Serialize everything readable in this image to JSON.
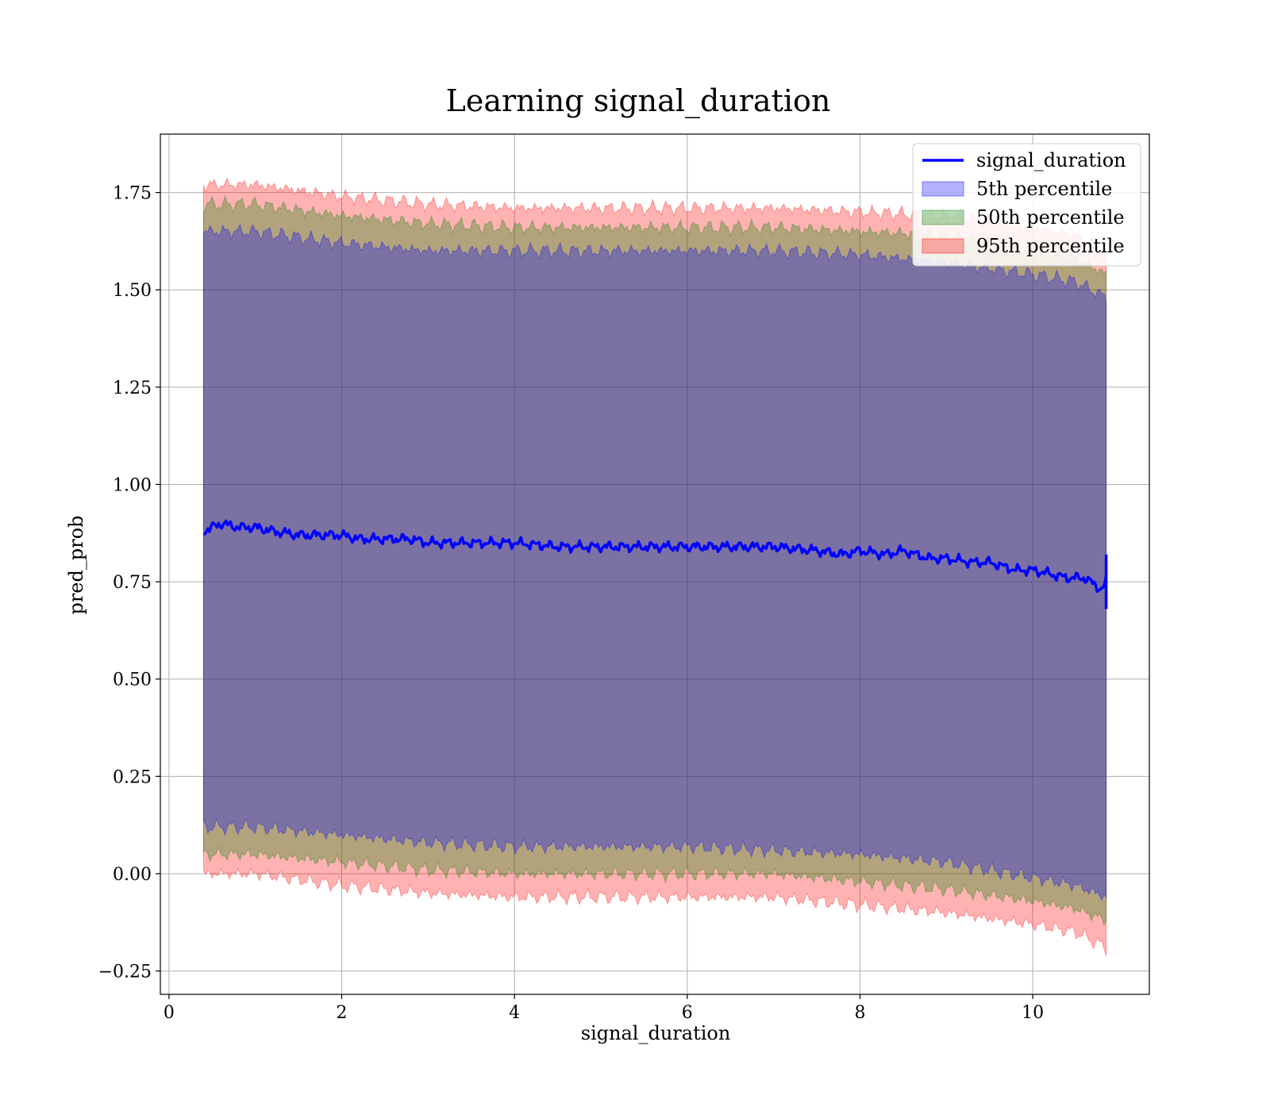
{
  "chart_data": {
    "type": "area",
    "title": "Learning signal_duration",
    "xlabel": "signal_duration",
    "ylabel": "pred_prob",
    "xlim": [
      -0.1,
      11.35
    ],
    "ylim": [
      -0.31,
      1.9
    ],
    "xticks": [
      0,
      2,
      4,
      6,
      8,
      10
    ],
    "xtick_labels": [
      "0",
      "2",
      "4",
      "6",
      "8",
      "10"
    ],
    "yticks": [
      -0.25,
      0.0,
      0.25,
      0.5,
      0.75,
      1.0,
      1.25,
      1.5,
      1.75
    ],
    "ytick_labels": [
      "−0.25",
      "0.00",
      "0.25",
      "0.50",
      "0.75",
      "1.00",
      "1.25",
      "1.50",
      "1.75"
    ],
    "grid": true,
    "legend_position": "top-right",
    "line": {
      "name": "signal_duration",
      "color": "#0000ff",
      "x": [
        0.4,
        0.6,
        0.8,
        1.0,
        1.2,
        1.5,
        1.8,
        2.0,
        2.2,
        2.5,
        2.8,
        3.0,
        3.3,
        3.6,
        4.0,
        4.5,
        5.0,
        5.5,
        6.0,
        6.5,
        7.0,
        7.5,
        7.8,
        8.0,
        8.3,
        8.5,
        8.8,
        9.0,
        9.3,
        9.5,
        9.8,
        10.0,
        10.2,
        10.4,
        10.6,
        10.8,
        10.85
      ],
      "y": [
        0.88,
        0.9,
        0.89,
        0.89,
        0.88,
        0.87,
        0.87,
        0.87,
        0.86,
        0.86,
        0.86,
        0.85,
        0.85,
        0.85,
        0.85,
        0.84,
        0.84,
        0.84,
        0.84,
        0.84,
        0.84,
        0.83,
        0.82,
        0.83,
        0.82,
        0.83,
        0.81,
        0.81,
        0.8,
        0.8,
        0.78,
        0.78,
        0.77,
        0.76,
        0.76,
        0.73,
        0.75
      ]
    },
    "bands": [
      {
        "name": "95th percentile",
        "color": "#ff0000",
        "opacity": 0.3,
        "x": [
          0.4,
          1.0,
          2.0,
          3.0,
          4.0,
          5.0,
          6.0,
          7.0,
          8.0,
          9.0,
          10.0,
          10.5,
          10.85
        ],
        "lower": [
          0.0,
          0.0,
          -0.03,
          -0.05,
          -0.06,
          -0.06,
          -0.06,
          -0.06,
          -0.08,
          -0.1,
          -0.13,
          -0.15,
          -0.19
        ],
        "upper": [
          1.77,
          1.77,
          1.74,
          1.72,
          1.71,
          1.71,
          1.71,
          1.71,
          1.7,
          1.69,
          1.66,
          1.64,
          1.6
        ]
      },
      {
        "name": "50th percentile",
        "color": "#008000",
        "opacity": 0.3,
        "x": [
          0.4,
          1.0,
          2.0,
          3.0,
          4.0,
          5.0,
          6.0,
          7.0,
          8.0,
          9.0,
          10.0,
          10.5,
          10.85
        ],
        "lower": [
          0.05,
          0.05,
          0.03,
          0.01,
          0.0,
          0.0,
          0.0,
          0.0,
          -0.02,
          -0.04,
          -0.07,
          -0.09,
          -0.12
        ],
        "upper": [
          1.72,
          1.72,
          1.69,
          1.67,
          1.66,
          1.66,
          1.66,
          1.66,
          1.65,
          1.64,
          1.6,
          1.58,
          1.54
        ]
      },
      {
        "name": "5th percentile",
        "color": "#0000ff",
        "opacity": 0.3,
        "x": [
          0.4,
          1.0,
          2.0,
          3.0,
          4.0,
          5.0,
          6.0,
          7.0,
          8.0,
          9.0,
          10.0,
          10.5,
          10.85
        ],
        "lower": [
          0.12,
          0.12,
          0.1,
          0.08,
          0.07,
          0.07,
          0.07,
          0.06,
          0.05,
          0.03,
          -0.01,
          -0.03,
          -0.06
        ],
        "upper": [
          1.65,
          1.65,
          1.62,
          1.6,
          1.6,
          1.6,
          1.6,
          1.6,
          1.59,
          1.57,
          1.54,
          1.52,
          1.48
        ]
      }
    ],
    "legend": [
      {
        "label": "signal_duration",
        "kind": "line",
        "color": "#0000ff"
      },
      {
        "label": "5th percentile",
        "kind": "patch",
        "color": "#0000ff"
      },
      {
        "label": "50th percentile",
        "kind": "patch",
        "color": "#008000"
      },
      {
        "label": "95th percentile",
        "kind": "patch",
        "color": "#ff0000"
      }
    ]
  }
}
